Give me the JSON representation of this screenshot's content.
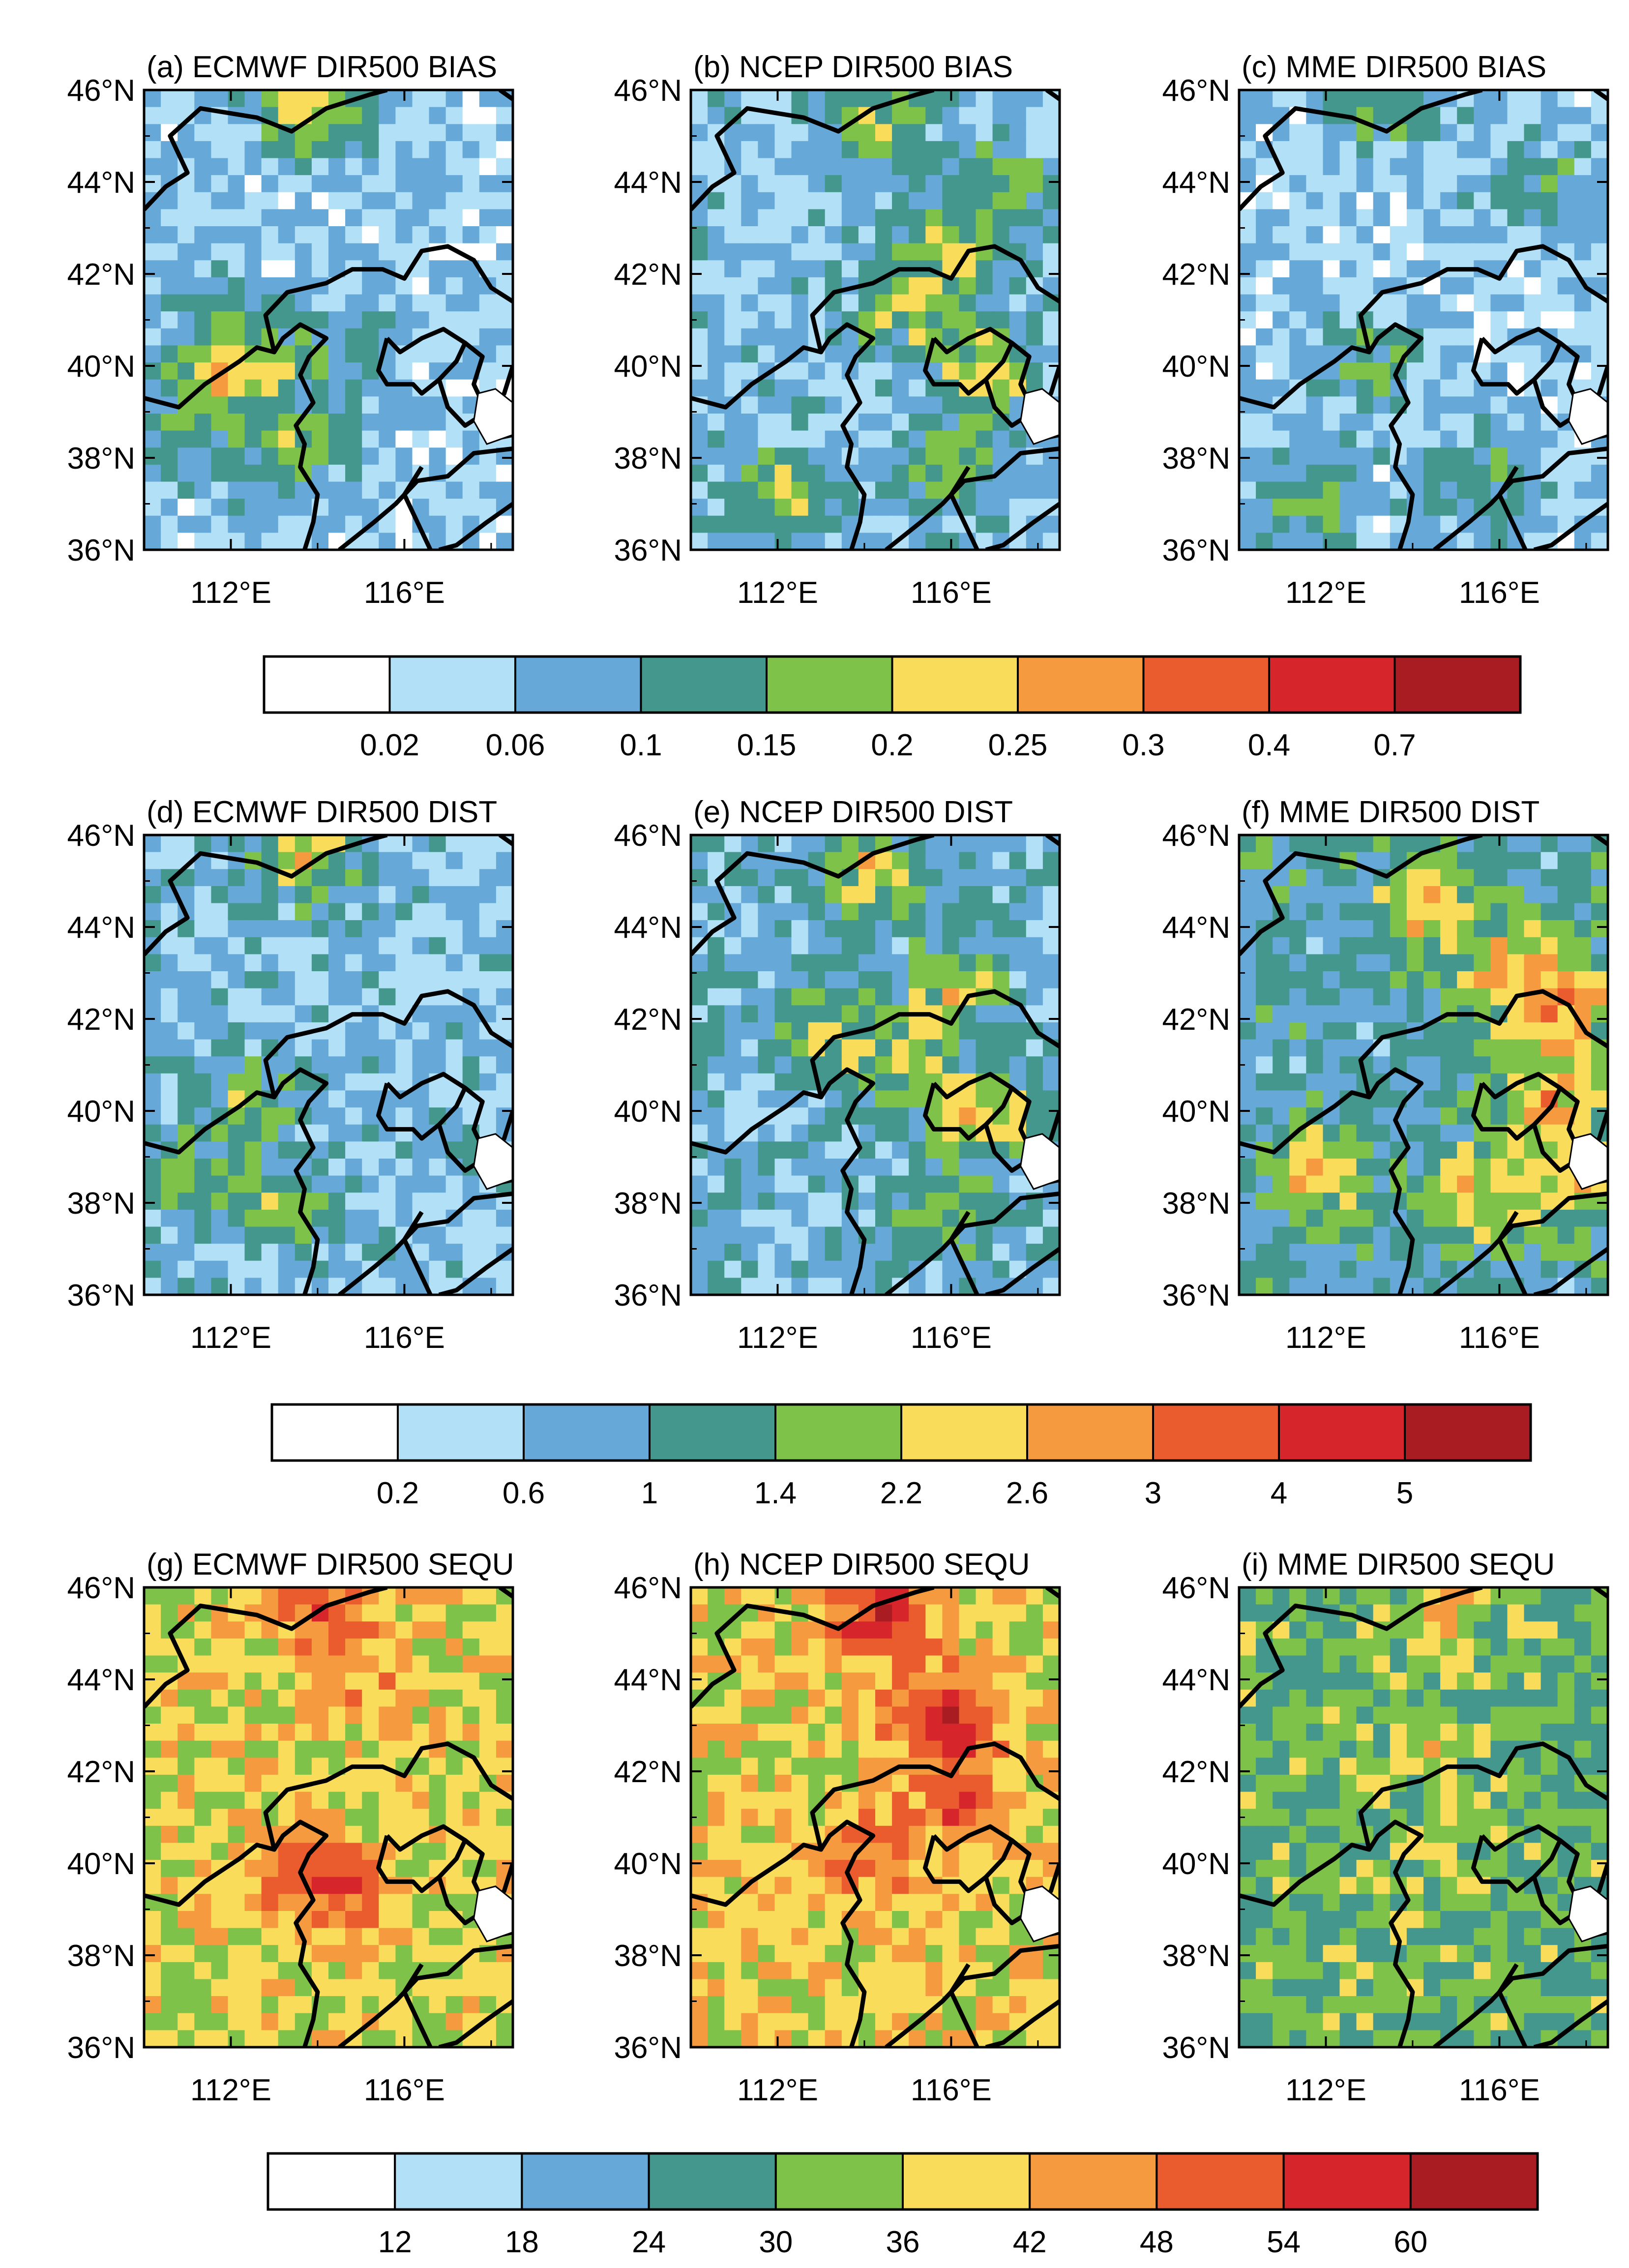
{
  "colors": [
    "#ffffff",
    "#b2e0f7",
    "#66a8d8",
    "#43978c",
    "#7ec24a",
    "#f8dc5a",
    "#f59a3e",
    "#ea5b2e",
    "#d7262b",
    "#a81c22"
  ],
  "row_scales": [
    {
      "id": "bias",
      "labels": [
        "0.02",
        "0.06",
        "0.1",
        "0.15",
        "0.2",
        "0.25",
        "0.3",
        "0.4",
        "0.7"
      ]
    },
    {
      "id": "dist",
      "labels": [
        "0.2",
        "0.6",
        "1",
        "1.4",
        "2.2",
        "2.6",
        "3",
        "4",
        "5"
      ]
    },
    {
      "id": "sequ",
      "labels": [
        "12",
        "18",
        "24",
        "30",
        "36",
        "42",
        "48",
        "54",
        "60"
      ]
    }
  ],
  "axes": {
    "lat_labels": [
      "46°N",
      "44°N",
      "42°N",
      "40°N",
      "38°N",
      "36°N"
    ],
    "lon_labels": [
      "112°E",
      "116°E"
    ]
  },
  "panels": [
    {
      "id": "a",
      "title": "(a) ECMWF DIR500 BIAS",
      "row": 0,
      "col": 0,
      "centers": [
        [
          4.1,
          45.8,
          2.2
        ],
        [
          4.6,
          45.3,
          2.0
        ],
        [
          2.8,
          40.0,
          2.4
        ],
        [
          1.9,
          40.5,
          2.0
        ],
        [
          4.1,
          38.2,
          2.6
        ],
        [
          5.2,
          40.4,
          2.0
        ],
        [
          1.4,
          38.8,
          2.1
        ]
      ],
      "base": 1.3,
      "seed": 11
    },
    {
      "id": "b",
      "title": "(b) NCEP DIR500 BIAS",
      "row": 0,
      "col": 1,
      "centers": [
        [
          5.0,
          45.4,
          2.8
        ],
        [
          7.0,
          42.6,
          2.6
        ],
        [
          8.0,
          39.8,
          3.2
        ],
        [
          5.8,
          41.2,
          2.6
        ],
        [
          2.3,
          37.2,
          2.8
        ],
        [
          6.8,
          37.6,
          2.4
        ],
        [
          8.5,
          44.0,
          2.2
        ]
      ],
      "base": 1.6,
      "seed": 23
    },
    {
      "id": "c",
      "title": "(c) MME DIR500 BIAS",
      "row": 0,
      "col": 2,
      "centers": [
        [
          3.9,
          45.7,
          2.4
        ],
        [
          3.4,
          40.1,
          2.3
        ],
        [
          1.8,
          37.0,
          2.2
        ],
        [
          6.8,
          37.6,
          2.3
        ],
        [
          8.2,
          44.1,
          1.8
        ]
      ],
      "base": 1.3,
      "seed": 37
    },
    {
      "id": "d",
      "title": "(d) ECMWF DIR500 DIST",
      "row": 1,
      "col": 0,
      "centers": [
        [
          4.0,
          45.8,
          2.1
        ],
        [
          4.5,
          45.3,
          1.9
        ],
        [
          2.8,
          40.2,
          2.0
        ],
        [
          1.5,
          38.6,
          2.0
        ],
        [
          4.0,
          38.0,
          2.2
        ]
      ],
      "base": 1.6,
      "seed": 51
    },
    {
      "id": "e",
      "title": "(e) NCEP DIR500 DIST",
      "row": 1,
      "col": 1,
      "centers": [
        [
          4.9,
          45.3,
          2.7
        ],
        [
          7.0,
          42.6,
          2.6
        ],
        [
          8.0,
          39.9,
          3.1
        ],
        [
          5.8,
          41.0,
          2.6
        ],
        [
          3.5,
          41.8,
          2.3
        ],
        [
          6.8,
          37.8,
          2.3
        ]
      ],
      "base": 1.9,
      "seed": 67
    },
    {
      "id": "f",
      "title": "(f) MME DIR500 DIST",
      "row": 1,
      "col": 2,
      "centers": [
        [
          5.2,
          44.5,
          3.0
        ],
        [
          7.5,
          43.0,
          3.0
        ],
        [
          8.3,
          40.3,
          3.2
        ],
        [
          9.0,
          42.2,
          2.8
        ],
        [
          6.8,
          38.2,
          2.8
        ],
        [
          2.2,
          38.6,
          2.8
        ],
        [
          9.4,
          38.6,
          2.6
        ]
      ],
      "base": 2.5,
      "seed": 79
    },
    {
      "id": "g",
      "title": "(g) ECMWF DIR500 SEQU",
      "row": 2,
      "col": 0,
      "centers": [
        [
          4.6,
          45.6,
          2.3
        ],
        [
          5.8,
          44.0,
          1.4
        ],
        [
          4.2,
          39.9,
          2.2
        ],
        [
          5.4,
          39.3,
          1.8
        ]
      ],
      "base": 4.8,
      "seed": 91
    },
    {
      "id": "h",
      "title": "(h) NCEP DIR500 SEQU",
      "row": 2,
      "col": 1,
      "centers": [
        [
          5.2,
          45.4,
          3.3
        ],
        [
          6.8,
          43.2,
          2.8
        ],
        [
          7.3,
          41.4,
          2.4
        ],
        [
          4.5,
          40.0,
          1.8
        ]
      ],
      "base": 5.0,
      "seed": 103
    },
    {
      "id": "i",
      "title": "(i) MME DIR500 SEQU",
      "row": 2,
      "col": 2,
      "centers": [
        [
          5.4,
          45.6,
          1.6
        ],
        [
          5.2,
          42.5,
          1.0
        ],
        [
          5.4,
          40.2,
          0.8
        ]
      ],
      "base": 3.6,
      "seed": 117
    }
  ]
}
